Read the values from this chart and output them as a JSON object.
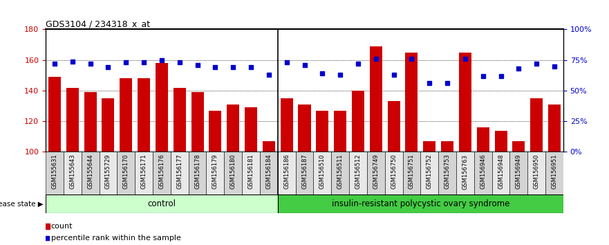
{
  "title": "GDS3104 / 234318_x_at",
  "samples": [
    "GSM155631",
    "GSM155643",
    "GSM155644",
    "GSM155729",
    "GSM156170",
    "GSM156171",
    "GSM156176",
    "GSM156177",
    "GSM156178",
    "GSM156179",
    "GSM156180",
    "GSM156181",
    "GSM156184",
    "GSM156186",
    "GSM156187",
    "GSM156510",
    "GSM156511",
    "GSM156512",
    "GSM156749",
    "GSM156750",
    "GSM156751",
    "GSM156752",
    "GSM156753",
    "GSM156763",
    "GSM156946",
    "GSM156948",
    "GSM156949",
    "GSM156950",
    "GSM156951"
  ],
  "bar_values": [
    149,
    142,
    139,
    135,
    148,
    148,
    158,
    142,
    139,
    127,
    131,
    129,
    107,
    135,
    131,
    127,
    127,
    140,
    169,
    133,
    165,
    107,
    107,
    165,
    116,
    114,
    107,
    135,
    131
  ],
  "percentile_values": [
    72,
    74,
    72,
    69,
    73,
    73,
    75,
    73,
    71,
    69,
    69,
    69,
    63,
    73,
    71,
    64,
    63,
    72,
    76,
    63,
    76,
    56,
    56,
    76,
    62,
    62,
    68,
    72,
    70
  ],
  "n_control": 13,
  "control_label": "control",
  "disease_label": "insulin-resistant polycystic ovary syndrome",
  "disease_state_label": "disease state",
  "bar_color": "#cc0000",
  "dot_color": "#0000cc",
  "control_bg": "#ccffcc",
  "disease_bg": "#44cc44",
  "ymin": 100,
  "ymax": 180,
  "yticks_left": [
    100,
    120,
    140,
    160,
    180
  ],
  "right_ytick_pcts": [
    0,
    25,
    50,
    75,
    100
  ],
  "right_yticklabels": [
    "0%",
    "25%",
    "50%",
    "75%",
    "100%"
  ],
  "legend_count_label": "count",
  "legend_pct_label": "percentile rank within the sample",
  "grid_dotted_at": [
    120,
    140,
    160
  ],
  "xticklabel_colors": [
    "#d0d0d0",
    "#c0c0c0"
  ]
}
